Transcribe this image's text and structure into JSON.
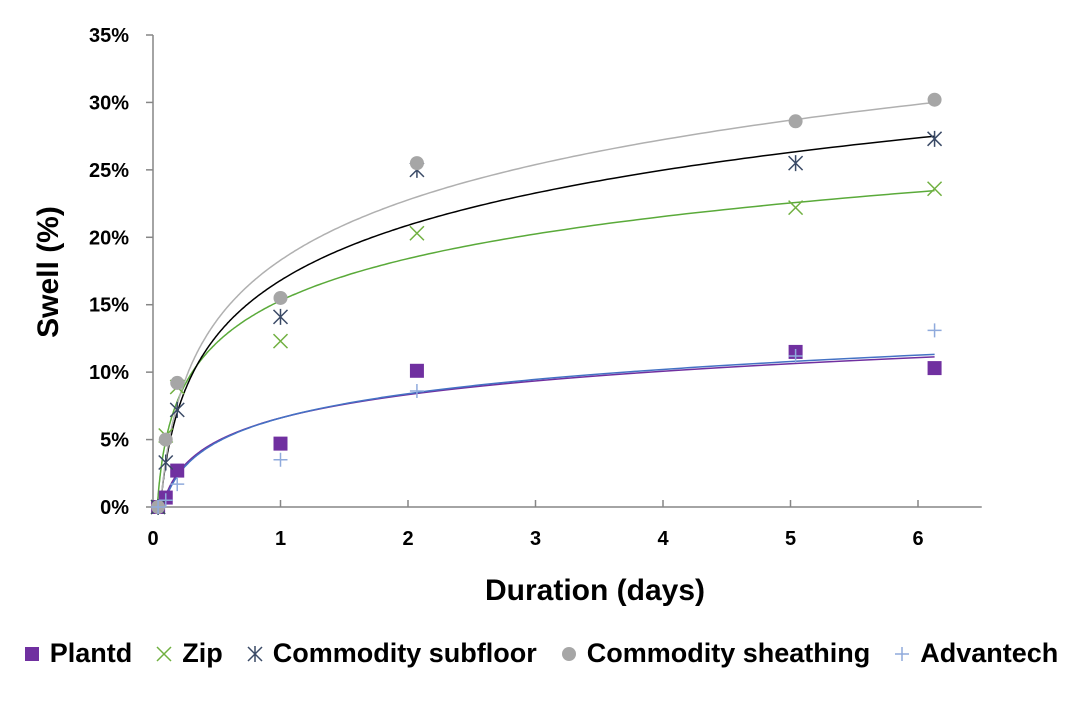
{
  "chart_data": {
    "type": "scatter",
    "title": "",
    "xlabel": "Duration (days)",
    "ylabel": "Swell (%)",
    "xlim": [
      0,
      6.5
    ],
    "ylim": [
      0,
      35
    ],
    "x_ticks": [
      "0",
      "1",
      "2",
      "3",
      "4",
      "5",
      "6"
    ],
    "y_ticks": [
      "0%",
      "5%",
      "10%",
      "15%",
      "20%",
      "25%",
      "30%",
      "35%"
    ],
    "grid": false,
    "legend_position": "bottom",
    "trendline": "logarithmic",
    "series": [
      {
        "name": "Plantd",
        "marker": "square",
        "color": "#7030a0",
        "trend_color": "#7030a0",
        "x": [
          0.04,
          0.1,
          0.19,
          1,
          2.07,
          5.04,
          6.13
        ],
        "y": [
          0,
          0.7,
          2.7,
          4.7,
          10.1,
          11.5,
          10.3
        ],
        "trend": {
          "a": 2.5,
          "b": 6.6
        }
      },
      {
        "name": "Zip",
        "marker": "x",
        "color": "#70b040",
        "trend_color": "#5aaa3a",
        "x": [
          0.04,
          0.1,
          0.19,
          1,
          2.07,
          5.04,
          6.13
        ],
        "y": [
          0,
          5.3,
          8.9,
          12.3,
          20.3,
          22.2,
          23.6
        ],
        "trend": {
          "a": 4.5,
          "b": 15.3
        }
      },
      {
        "name": "Commodity subfloor",
        "marker": "asterisk",
        "color": "#3a4a66",
        "trend_color": "#000000",
        "x": [
          0.04,
          0.1,
          0.19,
          1,
          2.07,
          5.04,
          6.13
        ],
        "y": [
          0,
          3.3,
          7.2,
          14.1,
          25.0,
          25.5,
          27.3
        ],
        "trend": {
          "a": 5.9,
          "b": 16.8
        }
      },
      {
        "name": "Commodity sheathing",
        "marker": "circle",
        "color": "#a6a6a6",
        "trend_color": "#b0b0b0",
        "x": [
          0.04,
          0.1,
          0.19,
          1,
          2.07,
          5.04,
          6.13
        ],
        "y": [
          0,
          5.0,
          9.2,
          15.5,
          25.5,
          28.6,
          30.2
        ],
        "trend": {
          "a": 6.45,
          "b": 18.3
        }
      },
      {
        "name": "Advantech",
        "marker": "plus",
        "color": "#8faadc",
        "trend_color": "#4472c4",
        "x": [
          0.04,
          0.1,
          0.19,
          1,
          2.07,
          5.04,
          6.13
        ],
        "y": [
          0,
          0.5,
          1.7,
          3.5,
          8.6,
          11.2,
          13.1
        ],
        "trend": {
          "a": 2.6,
          "b": 6.6
        }
      }
    ]
  }
}
